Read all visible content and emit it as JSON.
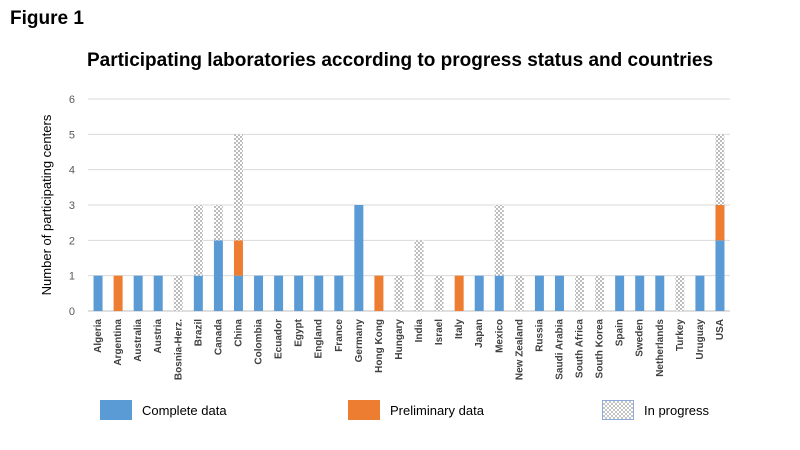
{
  "figure_label": "Figure 1",
  "chart_data": {
    "type": "bar",
    "stacked": true,
    "title": "Participating laboratories according to progress status and countries",
    "xlabel": "",
    "ylabel": "Number of participating centers",
    "ylim": [
      0,
      6
    ],
    "yticks": [
      0,
      1,
      2,
      3,
      4,
      5,
      6
    ],
    "grid": true,
    "legend_position": "bottom",
    "categories": [
      "Algeria",
      "Argentina",
      "Australia",
      "Austria",
      "Bosnia-Herz.",
      "Brazil",
      "Canada",
      "China",
      "Colombia",
      "Ecuador",
      "Egypt",
      "England",
      "France",
      "Germany",
      "Hong Kong",
      "Hungary",
      "India",
      "Israel",
      "Italy",
      "Japan",
      "Mexico",
      "New Zealand",
      "Russia",
      "Saudi Arabia",
      "South Africa",
      "South Korea",
      "Spain",
      "Sweden",
      "Netherlands",
      "Turkey",
      "Uruguay",
      "USA"
    ],
    "series": [
      {
        "name": "Complete data",
        "color": "#5b9bd5",
        "values": [
          1,
          0,
          1,
          1,
          0,
          1,
          2,
          1,
          1,
          1,
          1,
          1,
          1,
          3,
          0,
          0,
          0,
          0,
          0,
          1,
          1,
          0,
          1,
          1,
          0,
          0,
          1,
          1,
          1,
          0,
          1,
          2
        ]
      },
      {
        "name": "Preliminary data",
        "color": "#ed7d31",
        "values": [
          0,
          1,
          0,
          0,
          0,
          0,
          0,
          1,
          0,
          0,
          0,
          0,
          0,
          0,
          1,
          0,
          0,
          0,
          1,
          0,
          0,
          0,
          0,
          0,
          0,
          0,
          0,
          0,
          0,
          0,
          0,
          1
        ]
      },
      {
        "name": "In progress",
        "color": "#bfbfbf",
        "values": [
          0,
          0,
          0,
          0,
          1,
          2,
          1,
          3,
          0,
          0,
          0,
          0,
          0,
          0,
          0,
          1,
          2,
          1,
          0,
          0,
          2,
          1,
          0,
          0,
          1,
          1,
          0,
          0,
          0,
          1,
          0,
          2
        ]
      }
    ]
  }
}
